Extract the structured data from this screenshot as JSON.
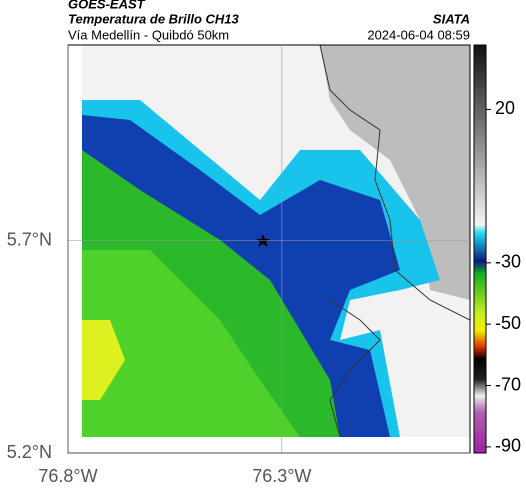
{
  "header": {
    "source": "GOES-EAST",
    "title": "Temperatura de Brillo CH13",
    "brand": "SIATA",
    "subtitle": "Vía Medellín - Quibdó 50km",
    "datetime": "2024-06-04 08:59"
  },
  "map": {
    "xlim": [
      -76.8,
      -75.86
    ],
    "ylim": [
      5.2,
      6.16
    ],
    "xticks": [
      {
        "value": -76.8,
        "label": "76.8°W"
      },
      {
        "value": -76.3,
        "label": "76.3°W"
      }
    ],
    "yticks": [
      {
        "value": 5.7,
        "label": "5.7°N"
      },
      {
        "value": 5.2,
        "label": "5.2°N"
      }
    ]
  },
  "colorbar": {
    "lim": [
      -92,
      41
    ],
    "ticks": [
      20,
      -30,
      -50,
      -70,
      -90
    ]
  }
}
